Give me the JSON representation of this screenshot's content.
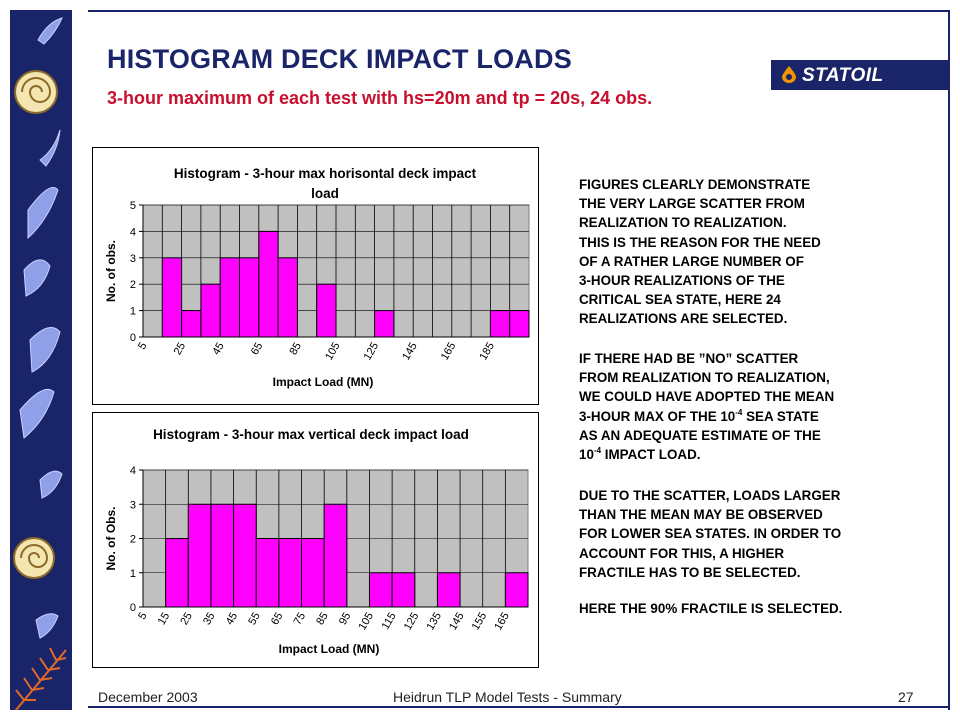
{
  "header": {
    "title": "HISTOGRAM DECK IMPACT LOADS",
    "subtitle": "3-hour maximum of each test with hs=20m and tp = 20s, 24 obs."
  },
  "logo": {
    "name": "STATOIL",
    "drop_color": "#f29400"
  },
  "colors": {
    "navy": "#1a2468",
    "red": "#c8102e",
    "bar": "#ff00ff",
    "plot_bg": "#c0c0c0"
  },
  "decor": {
    "sidebar_icons": [
      "fossil-icon",
      "fern-icon"
    ]
  },
  "chart_data": [
    {
      "type": "bar",
      "title_lines": [
        "Histogram - 3-hour max horisontal deck impact",
        "load"
      ],
      "xlabel": "Impact Load  (MN)",
      "ylabel": "No. of obs.",
      "ylim": [
        0,
        5
      ],
      "yticks": [
        "0",
        "1",
        "2",
        "3",
        "4",
        "5"
      ],
      "grid": true,
      "categories": [
        "5",
        "15",
        "25",
        "35",
        "45",
        "55",
        "65",
        "75",
        "85",
        "95",
        "105",
        "115",
        "125",
        "135",
        "145",
        "155",
        "165",
        "175",
        "185",
        "195"
      ],
      "xtick_labels": [
        "5",
        "25",
        "45",
        "65",
        "85",
        "105",
        "125",
        "145",
        "165",
        "185"
      ],
      "values": [
        0,
        3,
        1,
        2,
        3,
        3,
        4,
        3,
        0,
        2,
        0,
        0,
        1,
        0,
        0,
        0,
        0,
        0,
        1,
        1
      ]
    },
    {
      "type": "bar",
      "title_lines": [
        "Histogram - 3-hour max vertical deck impact load"
      ],
      "xlabel": "Impact Load (MN)",
      "ylabel": "No. of Obs.",
      "ylim": [
        0,
        4
      ],
      "yticks": [
        "0",
        "1",
        "2",
        "3",
        "4"
      ],
      "grid": true,
      "categories": [
        "5",
        "15",
        "25",
        "35",
        "45",
        "55",
        "65",
        "75",
        "85",
        "95",
        "105",
        "115",
        "125",
        "135",
        "145",
        "155",
        "165"
      ],
      "xtick_labels": [
        "5",
        "15",
        "25",
        "35",
        "45",
        "55",
        "65",
        "75",
        "85",
        "95",
        "105",
        "115",
        "125",
        "135",
        "145",
        "155",
        "165"
      ],
      "values": [
        0,
        2,
        3,
        3,
        3,
        2,
        2,
        2,
        3,
        0,
        1,
        1,
        0,
        1,
        0,
        0,
        1
      ]
    }
  ],
  "body": {
    "p1": [
      "FIGURES CLEARLY DEMONSTRATE",
      "THE VERY LARGE SCATTER FROM",
      "REALIZATION TO REALIZATION.",
      "THIS IS THE REASON FOR THE NEED",
      "OF A RATHER LARGE NUMBER OF",
      "3-HOUR REALIZATIONS OF THE",
      "CRITICAL SEA STATE, HERE 24",
      "REALIZATIONS ARE SELECTED."
    ],
    "p2": {
      "l1": "IF THERE HAD BE ”NO” SCATTER",
      "l2": "FROM REALIZATION TO REALIZATION,",
      "l3": "WE COULD HAVE ADOPTED THE MEAN",
      "l4a": "3-HOUR MAX OF THE 10",
      "l4sup": "-4",
      "l4b": " SEA STATE",
      "l5": "AS AN ADEQUATE ESTIMATE OF THE",
      "l6a": "10",
      "l6sup": "-4",
      "l6b": " IMPACT LOAD."
    },
    "p3": [
      "DUE TO THE SCATTER, LOADS LARGER",
      "THAN THE MEAN MAY BE OBSERVED",
      "FOR LOWER SEA STATES. IN ORDER TO",
      "ACCOUNT FOR THIS, A HIGHER",
      "FRACTILE HAS TO BE SELECTED."
    ],
    "p4": "HERE THE 90% FRACTILE IS SELECTED."
  },
  "footer": {
    "date": "December 2003",
    "center": "Heidrun TLP Model Tests - Summary",
    "page": "27"
  }
}
